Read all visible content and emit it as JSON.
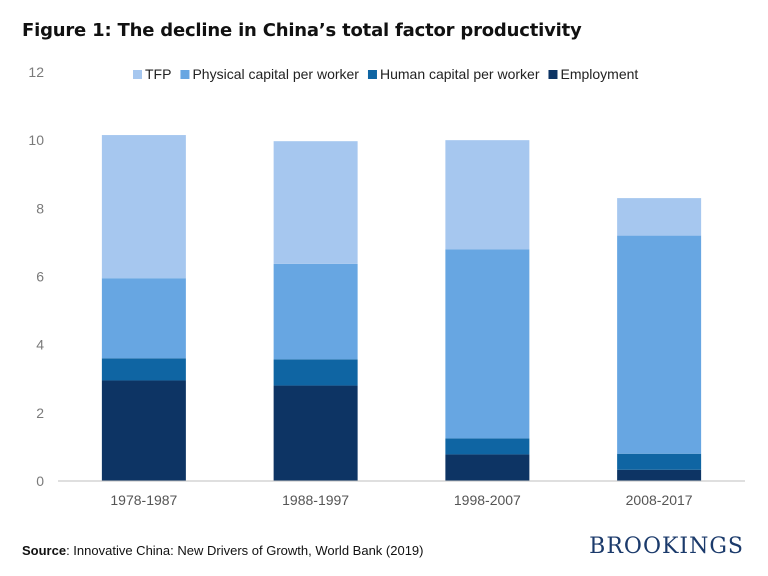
{
  "title": "Figure 1:  The decline in China’s total factor productivity",
  "source_label": "Source",
  "source_text": ": Innovative China: New Drivers of Growth, World Bank (2019)",
  "logo": "BROOKINGS",
  "chart_data": {
    "type": "bar",
    "stacked": true,
    "categories": [
      "1978-1987",
      "1988-1997",
      "1998-2007",
      "2008-2017"
    ],
    "series": [
      {
        "name": "Employment",
        "color": "#0d3464",
        "values": [
          2.95,
          2.8,
          0.78,
          0.33
        ]
      },
      {
        "name": "Human capital per worker",
        "color": "#0f65a3",
        "values": [
          0.65,
          0.77,
          0.47,
          0.47
        ]
      },
      {
        "name": "Physical capital per worker",
        "color": "#67a6e2",
        "values": [
          2.35,
          2.8,
          5.55,
          6.4
        ]
      },
      {
        "name": "TFP",
        "color": "#a6c7ef",
        "values": [
          4.2,
          3.6,
          3.2,
          1.1
        ]
      }
    ],
    "legend_order": [
      "TFP",
      "Physical capital per worker",
      "Human capital per worker",
      "Employment"
    ],
    "legend_placement": "top",
    "yticks": [
      "0",
      "2",
      "4",
      "6",
      "8",
      "10",
      "12"
    ],
    "ylim": [
      0,
      12
    ],
    "grid": false
  }
}
